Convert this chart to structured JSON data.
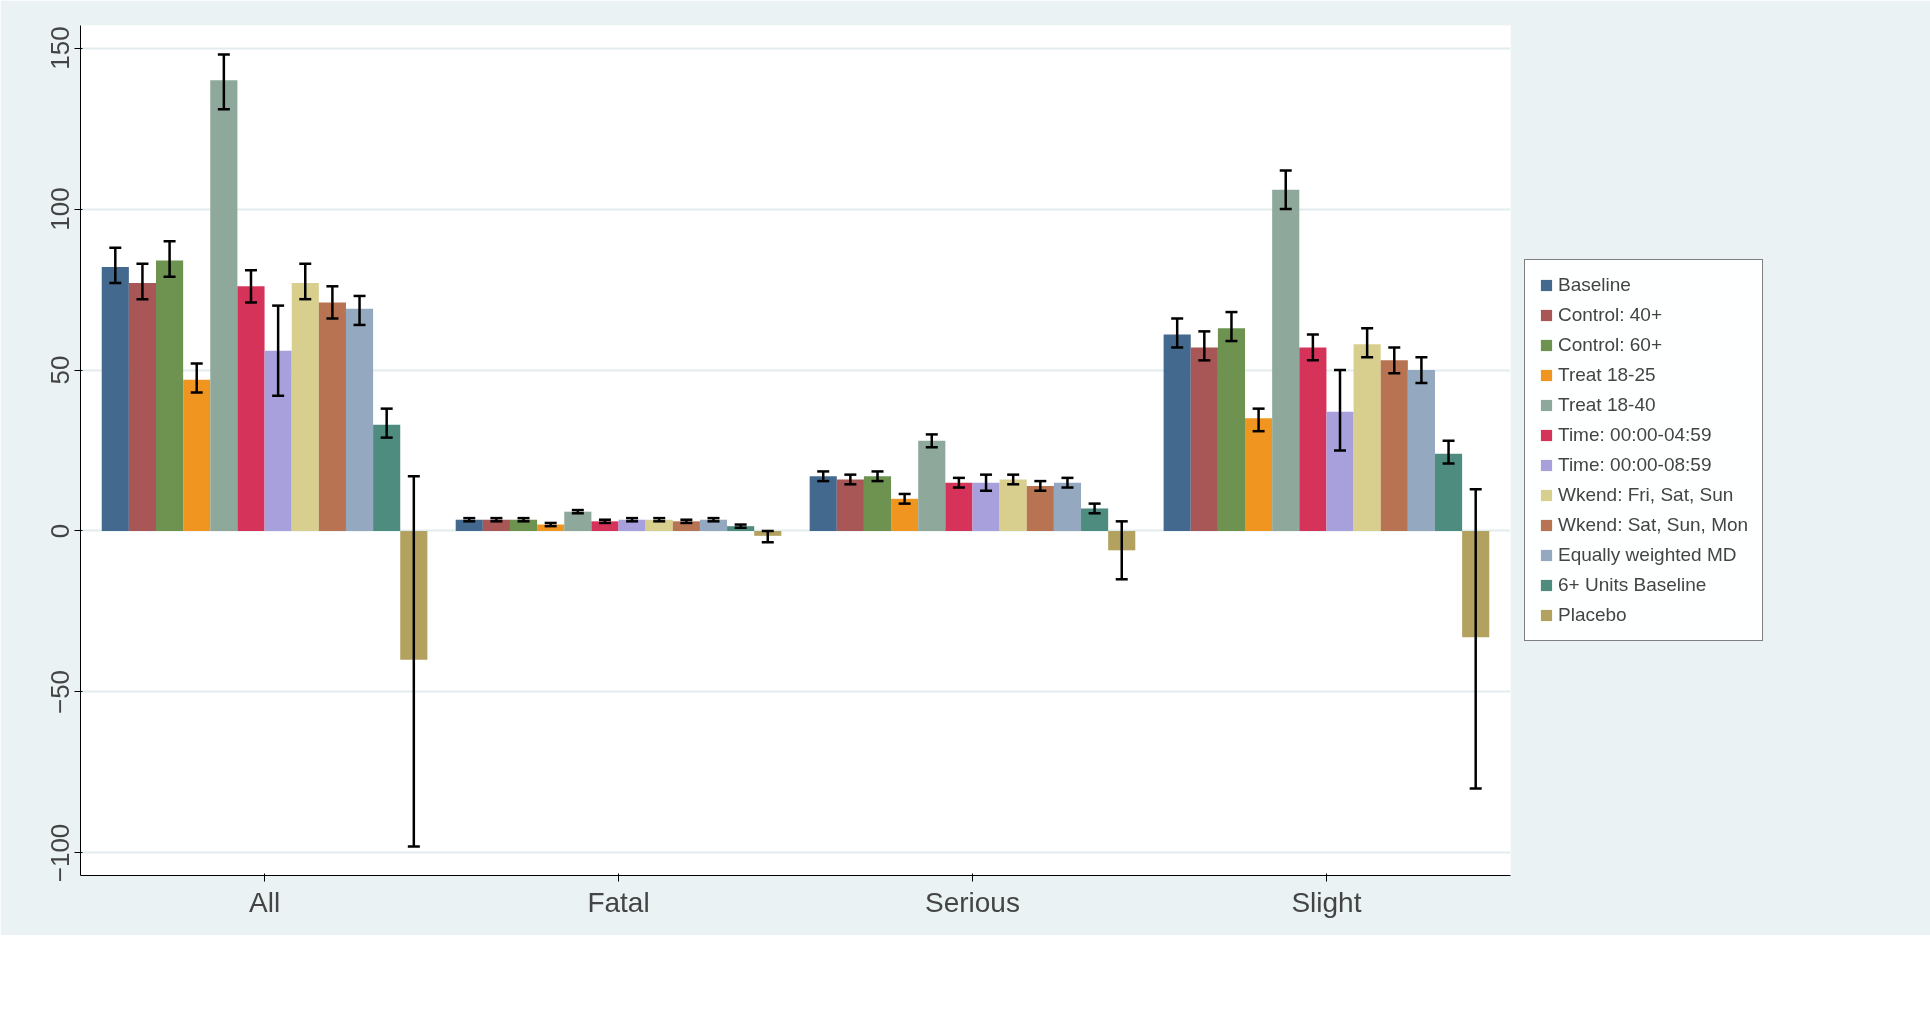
{
  "chart_data": {
    "type": "bar",
    "categories": [
      "All",
      "Fatal",
      "Serious",
      "Slight"
    ],
    "series": [
      {
        "name": "Baseline",
        "color": "#43698f",
        "values": [
          82,
          3.5,
          17,
          61
        ],
        "errors": [
          [
            77,
            88
          ],
          [
            3,
            4
          ],
          [
            15.5,
            18.5
          ],
          [
            57,
            66
          ]
        ]
      },
      {
        "name": "Control: 40+",
        "color": "#a85656",
        "values": [
          77,
          3.5,
          16,
          57
        ],
        "errors": [
          [
            72,
            83
          ],
          [
            3,
            4
          ],
          [
            14.5,
            17.5
          ],
          [
            53,
            62
          ]
        ]
      },
      {
        "name": "Control: 60+",
        "color": "#6e9350",
        "values": [
          84,
          3.5,
          17,
          63
        ],
        "errors": [
          [
            79,
            90
          ],
          [
            3,
            4
          ],
          [
            15.5,
            18.5
          ],
          [
            59,
            68
          ]
        ]
      },
      {
        "name": "Treat 18-25",
        "color": "#f0951f",
        "values": [
          47,
          2,
          10,
          35
        ],
        "errors": [
          [
            43,
            52
          ],
          [
            1.5,
            2.5
          ],
          [
            8.5,
            11.5
          ],
          [
            31,
            38
          ]
        ]
      },
      {
        "name": "Treat 18-40",
        "color": "#8ea89b",
        "values": [
          140,
          6,
          28,
          106
        ],
        "errors": [
          [
            131,
            148
          ],
          [
            5.5,
            6.5
          ],
          [
            26,
            30
          ],
          [
            100,
            112
          ]
        ]
      },
      {
        "name": "Time: 00:00-04:59",
        "color": "#d6335a",
        "values": [
          76,
          3,
          15,
          57
        ],
        "errors": [
          [
            71,
            81
          ],
          [
            2.5,
            3.5
          ],
          [
            13.5,
            16.5
          ],
          [
            53,
            61
          ]
        ]
      },
      {
        "name": "Time: 00:00-08:59",
        "color": "#a8a0dc",
        "values": [
          56,
          3.5,
          15,
          37
        ],
        "errors": [
          [
            42,
            70
          ],
          [
            3,
            4
          ],
          [
            12.5,
            17.5
          ],
          [
            25,
            50
          ]
        ]
      },
      {
        "name": "Wkend: Fri, Sat, Sun",
        "color": "#d8cf8f",
        "values": [
          77,
          3.5,
          16,
          58
        ],
        "errors": [
          [
            72,
            83
          ],
          [
            3,
            4
          ],
          [
            14.5,
            17.5
          ],
          [
            54,
            63
          ]
        ]
      },
      {
        "name": "Wkend: Sat, Sun, Mon",
        "color": "#b87352",
        "values": [
          71,
          3,
          14,
          53
        ],
        "errors": [
          [
            66,
            76
          ],
          [
            2.5,
            3.5
          ],
          [
            12.5,
            15.5
          ],
          [
            49,
            57
          ]
        ]
      },
      {
        "name": "Equally weighted MD",
        "color": "#94a9c0",
        "values": [
          69,
          3.5,
          15,
          50
        ],
        "errors": [
          [
            64,
            73
          ],
          [
            3,
            4
          ],
          [
            13.5,
            16.5
          ],
          [
            46,
            54
          ]
        ]
      },
      {
        "name": "6+ Units Baseline",
        "color": "#4f8c80",
        "values": [
          33,
          1.5,
          7,
          24
        ],
        "errors": [
          [
            29,
            38
          ],
          [
            1,
            2
          ],
          [
            5.5,
            8.5
          ],
          [
            21,
            28
          ]
        ]
      },
      {
        "name": "Placebo",
        "color": "#b3a25f",
        "values": [
          -40,
          -1.5,
          -6,
          -33
        ],
        "errors": [
          [
            -98,
            17
          ],
          [
            -3.5,
            0
          ],
          [
            -15,
            3
          ],
          [
            -80,
            13
          ]
        ]
      }
    ],
    "ylim": [
      -107,
      157
    ],
    "yticks": [
      -100,
      -50,
      0,
      50,
      100,
      150
    ],
    "grid": "y",
    "legend": "right"
  }
}
